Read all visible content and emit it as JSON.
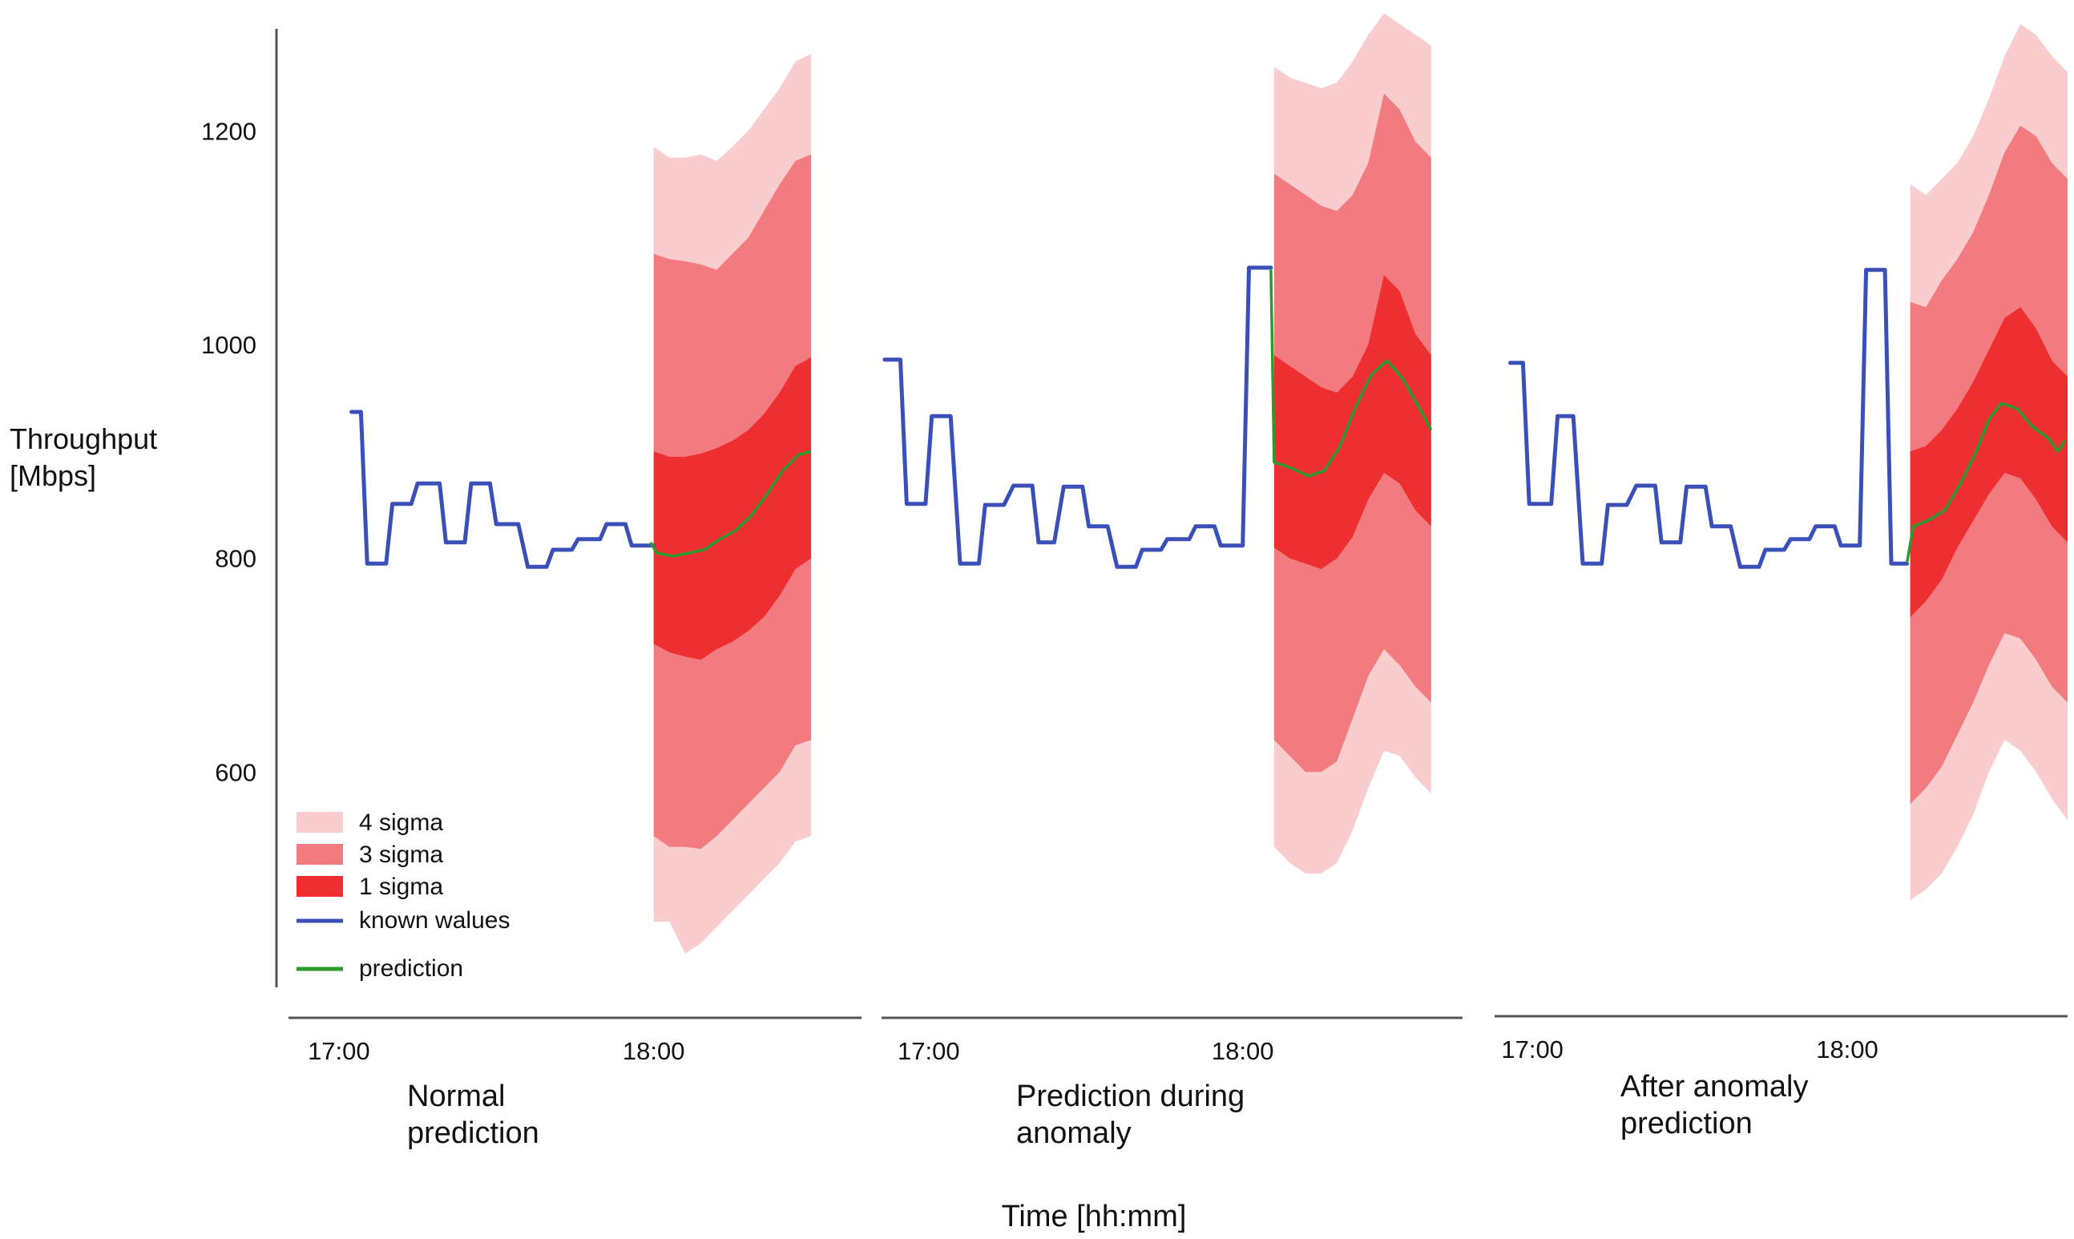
{
  "chart_data": {
    "type": "line",
    "ylabel": [
      "Throughput",
      "[Mbps]"
    ],
    "xlabel": "Time [hh:mm]",
    "y_ticks": [
      600,
      800,
      1000,
      1200
    ],
    "ylim": [
      400,
      1300
    ],
    "grid": false,
    "legend_position": "bottom-left",
    "legend": [
      {
        "label": "4 sigma",
        "color": "#f9cccd"
      },
      {
        "label": "3 sigma",
        "color": "#f17b7e"
      },
      {
        "label": "1 sigma",
        "color": "#ed2f31"
      },
      {
        "label": "known walues",
        "color": "#3a4fb8"
      },
      {
        "label": "prediction",
        "color": "#2e9a2e"
      }
    ],
    "panels": [
      {
        "title": [
          "Normal",
          "prediction"
        ],
        "x_ticks": [
          {
            "t": 17.0,
            "label": "17:00"
          },
          {
            "t": 18.0,
            "label": "18:00"
          }
        ],
        "xlim": [
          16.84,
          18.66
        ],
        "known_values": [
          [
            17.04,
            937
          ],
          [
            17.07,
            937
          ],
          [
            17.09,
            795
          ],
          [
            17.15,
            795
          ],
          [
            17.17,
            851
          ],
          [
            17.23,
            851
          ],
          [
            17.25,
            870
          ],
          [
            17.32,
            870
          ],
          [
            17.34,
            815
          ],
          [
            17.4,
            815
          ],
          [
            17.42,
            870
          ],
          [
            17.48,
            870
          ],
          [
            17.5,
            832
          ],
          [
            17.57,
            832
          ],
          [
            17.6,
            792
          ],
          [
            17.66,
            792
          ],
          [
            17.68,
            808
          ],
          [
            17.74,
            808
          ],
          [
            17.76,
            818
          ],
          [
            17.83,
            818
          ],
          [
            17.85,
            832
          ],
          [
            17.91,
            832
          ],
          [
            17.93,
            812
          ],
          [
            18.0,
            812
          ]
        ],
        "prediction": [
          [
            17.99,
            815
          ],
          [
            18.01,
            805
          ],
          [
            18.06,
            802
          ],
          [
            18.11,
            805
          ],
          [
            18.16,
            808
          ],
          [
            18.21,
            818
          ],
          [
            18.26,
            826
          ],
          [
            18.31,
            840
          ],
          [
            18.36,
            860
          ],
          [
            18.41,
            882
          ],
          [
            18.46,
            897
          ],
          [
            18.5,
            900
          ]
        ],
        "bands": {
          "t": [
            18.0,
            18.05,
            18.1,
            18.15,
            18.2,
            18.25,
            18.3,
            18.35,
            18.4,
            18.45,
            18.5
          ],
          "s4_upper": [
            1185,
            1175,
            1175,
            1178,
            1172,
            1185,
            1200,
            1220,
            1240,
            1265,
            1272
          ],
          "s4_lower": [
            460,
            460,
            430,
            440,
            455,
            470,
            485,
            500,
            515,
            535,
            540
          ],
          "s3_upper": [
            1085,
            1080,
            1078,
            1075,
            1070,
            1085,
            1100,
            1125,
            1150,
            1172,
            1178
          ],
          "s3_lower": [
            540,
            530,
            530,
            528,
            540,
            555,
            570,
            585,
            600,
            625,
            630
          ],
          "s1_upper": [
            900,
            895,
            895,
            898,
            903,
            910,
            920,
            935,
            955,
            980,
            988
          ],
          "s1_lower": [
            720,
            712,
            708,
            705,
            715,
            722,
            732,
            745,
            765,
            790,
            800
          ]
        }
      },
      {
        "title": [
          "Prediction during",
          "anomaly"
        ],
        "x_ticks": [
          {
            "t": 17.0,
            "label": "17:00"
          },
          {
            "t": 18.0,
            "label": "18:00"
          }
        ],
        "xlim": [
          16.85,
          18.7
        ],
        "known_values": [
          [
            16.86,
            986
          ],
          [
            16.91,
            986
          ],
          [
            16.93,
            851
          ],
          [
            16.99,
            851
          ],
          [
            17.01,
            933
          ],
          [
            17.07,
            933
          ],
          [
            17.1,
            795
          ],
          [
            17.16,
            795
          ],
          [
            17.18,
            850
          ],
          [
            17.24,
            850
          ],
          [
            17.27,
            868
          ],
          [
            17.33,
            868
          ],
          [
            17.35,
            815
          ],
          [
            17.4,
            815
          ],
          [
            17.43,
            867
          ],
          [
            17.49,
            867
          ],
          [
            17.51,
            830
          ],
          [
            17.57,
            830
          ],
          [
            17.6,
            792
          ],
          [
            17.66,
            792
          ],
          [
            17.68,
            808
          ],
          [
            17.74,
            808
          ],
          [
            17.76,
            818
          ],
          [
            17.83,
            818
          ],
          [
            17.85,
            830
          ],
          [
            17.91,
            830
          ],
          [
            17.93,
            812
          ],
          [
            18.0,
            812
          ],
          [
            18.02,
            1072
          ],
          [
            18.09,
            1072
          ]
        ],
        "prediction": [
          [
            18.09,
            1070
          ],
          [
            18.1,
            890
          ],
          [
            18.15,
            885
          ],
          [
            18.21,
            877
          ],
          [
            18.26,
            882
          ],
          [
            18.31,
            905
          ],
          [
            18.36,
            942
          ],
          [
            18.41,
            972
          ],
          [
            18.46,
            985
          ],
          [
            18.51,
            968
          ],
          [
            18.56,
            942
          ],
          [
            18.6,
            920
          ]
        ],
        "bands": {
          "t": [
            18.1,
            18.15,
            18.2,
            18.25,
            18.3,
            18.35,
            18.4,
            18.45,
            18.5,
            18.55,
            18.6
          ],
          "s4_upper": [
            1260,
            1250,
            1245,
            1240,
            1245,
            1265,
            1290,
            1310,
            1300,
            1290,
            1280
          ],
          "s4_lower": [
            530,
            515,
            505,
            505,
            515,
            545,
            585,
            620,
            615,
            595,
            580
          ],
          "s3_upper": [
            1160,
            1150,
            1140,
            1130,
            1125,
            1140,
            1170,
            1235,
            1220,
            1190,
            1175
          ],
          "s3_lower": [
            630,
            615,
            600,
            600,
            610,
            650,
            690,
            715,
            700,
            680,
            665
          ],
          "s1_upper": [
            990,
            980,
            970,
            960,
            955,
            970,
            1000,
            1065,
            1050,
            1010,
            990
          ],
          "s1_lower": [
            810,
            800,
            795,
            790,
            800,
            820,
            855,
            880,
            870,
            845,
            830
          ]
        }
      },
      {
        "title": [
          "After anomaly",
          "prediction"
        ],
        "x_ticks": [
          {
            "t": 17.0,
            "label": "17:00"
          },
          {
            "t": 18.0,
            "label": "18:00"
          }
        ],
        "xlim": [
          16.88,
          18.7
        ],
        "known_values": [
          [
            16.93,
            983
          ],
          [
            16.97,
            983
          ],
          [
            16.99,
            851
          ],
          [
            17.06,
            851
          ],
          [
            17.08,
            933
          ],
          [
            17.13,
            933
          ],
          [
            17.16,
            795
          ],
          [
            17.22,
            795
          ],
          [
            17.24,
            850
          ],
          [
            17.3,
            850
          ],
          [
            17.33,
            868
          ],
          [
            17.39,
            868
          ],
          [
            17.41,
            815
          ],
          [
            17.47,
            815
          ],
          [
            17.49,
            867
          ],
          [
            17.55,
            867
          ],
          [
            17.57,
            830
          ],
          [
            17.63,
            830
          ],
          [
            17.66,
            792
          ],
          [
            17.72,
            792
          ],
          [
            17.74,
            808
          ],
          [
            17.8,
            808
          ],
          [
            17.82,
            818
          ],
          [
            17.88,
            818
          ],
          [
            17.9,
            830
          ],
          [
            17.96,
            830
          ],
          [
            17.98,
            812
          ],
          [
            18.04,
            812
          ],
          [
            18.06,
            1070
          ],
          [
            18.12,
            1070
          ],
          [
            18.14,
            795
          ],
          [
            18.19,
            795
          ]
        ],
        "prediction": [
          [
            18.19,
            796
          ],
          [
            18.21,
            830
          ],
          [
            18.26,
            836
          ],
          [
            18.31,
            845
          ],
          [
            18.36,
            870
          ],
          [
            18.41,
            900
          ],
          [
            18.45,
            930
          ],
          [
            18.49,
            945
          ],
          [
            18.54,
            940
          ],
          [
            18.59,
            923
          ],
          [
            18.64,
            912
          ],
          [
            18.67,
            900
          ],
          [
            18.69,
            910
          ]
        ],
        "bands": {
          "t": [
            18.2,
            18.25,
            18.3,
            18.35,
            18.4,
            18.45,
            18.5,
            18.55,
            18.6,
            18.65,
            18.7
          ],
          "s4_upper": [
            1150,
            1140,
            1155,
            1170,
            1195,
            1230,
            1270,
            1300,
            1290,
            1270,
            1255
          ],
          "s4_lower": [
            480,
            490,
            505,
            530,
            560,
            600,
            630,
            620,
            600,
            575,
            555
          ],
          "s3_upper": [
            1040,
            1035,
            1060,
            1080,
            1105,
            1140,
            1180,
            1205,
            1195,
            1170,
            1155
          ],
          "s3_lower": [
            570,
            585,
            605,
            635,
            665,
            700,
            730,
            725,
            705,
            680,
            665
          ],
          "s1_upper": [
            900,
            905,
            920,
            940,
            965,
            995,
            1025,
            1035,
            1015,
            985,
            970
          ],
          "s1_lower": [
            745,
            760,
            780,
            810,
            835,
            860,
            880,
            875,
            855,
            830,
            815
          ]
        }
      }
    ]
  }
}
